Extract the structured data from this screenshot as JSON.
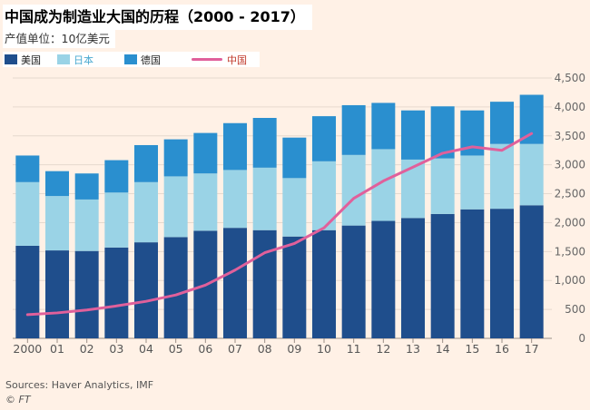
{
  "title": "中国成为制造业大国的历程（2000 - 2017）",
  "subtitle": "产值单位：10亿美元",
  "source": "Sources: Haver Analytics, IMF",
  "credit": "© FT",
  "colors": {
    "us": "#1f4e8c",
    "japan": "#9ad3e6",
    "germany": "#2a8fcf",
    "china": "#e0609b",
    "background": "#fff1e6",
    "grid": "#e6d9ce"
  },
  "chart_data": {
    "type": "bar",
    "stacked": true,
    "categories": [
      "2000",
      "01",
      "02",
      "03",
      "04",
      "05",
      "06",
      "07",
      "08",
      "09",
      "10",
      "11",
      "12",
      "13",
      "14",
      "15",
      "16",
      "17"
    ],
    "series": [
      {
        "name": "美国",
        "values": [
          1600,
          1520,
          1510,
          1570,
          1660,
          1750,
          1860,
          1910,
          1870,
          1760,
          1870,
          1950,
          2030,
          2080,
          2150,
          2230,
          2240,
          2300
        ]
      },
      {
        "name": "日本",
        "values": [
          1100,
          940,
          890,
          950,
          1040,
          1050,
          990,
          1000,
          1080,
          1010,
          1190,
          1220,
          1240,
          1010,
          960,
          930,
          1120,
          1060
        ]
      },
      {
        "name": "德国",
        "values": [
          460,
          430,
          450,
          560,
          640,
          640,
          700,
          810,
          860,
          700,
          780,
          860,
          800,
          850,
          900,
          780,
          730,
          850
        ]
      },
      {
        "name": "中国",
        "type": "line",
        "values": [
          410,
          440,
          490,
          560,
          640,
          750,
          920,
          1180,
          1480,
          1640,
          1910,
          2420,
          2720,
          2960,
          3200,
          3310,
          3250,
          3540
        ]
      }
    ],
    "ylim": [
      0,
      4500
    ],
    "yticks": [
      0,
      500,
      "1,000",
      "1,500",
      "2,000",
      "2,500",
      "3,000",
      "3,500",
      "4,000",
      "4,500"
    ],
    "ytick_values": [
      0,
      500,
      1000,
      1500,
      2000,
      2500,
      3000,
      3500,
      4000,
      4500
    ],
    "y_axis_side": "right",
    "grid": true,
    "legend": "top-left"
  }
}
